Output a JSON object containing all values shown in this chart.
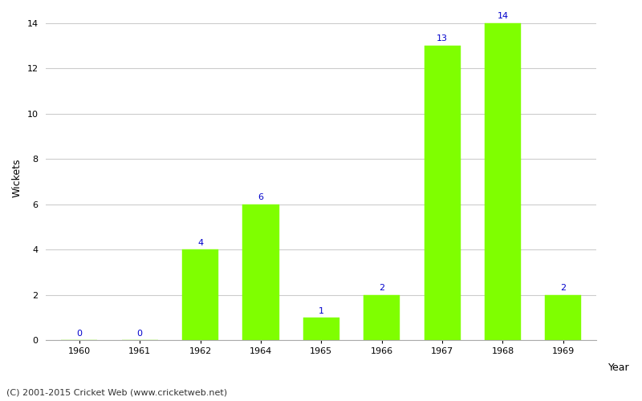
{
  "years": [
    "1960",
    "1961",
    "1962",
    "1964",
    "1965",
    "1966",
    "1967",
    "1968",
    "1969"
  ],
  "values": [
    0,
    0,
    4,
    6,
    1,
    2,
    13,
    14,
    2
  ],
  "bar_color": "#7FFF00",
  "bar_edge_color": "#7FFF00",
  "label_color": "#0000CC",
  "xlabel": "Year",
  "ylabel": "Wickets",
  "ylim_max": 14,
  "yticks_major": [
    0,
    2,
    4,
    6,
    8,
    10,
    12,
    14
  ],
  "background_color": "#ffffff",
  "grid_color": "#cccccc",
  "footer_text": "(C) 2001-2015 Cricket Web (www.cricketweb.net)",
  "label_fontsize": 8,
  "axis_label_fontsize": 9,
  "tick_fontsize": 8,
  "footer_fontsize": 8
}
